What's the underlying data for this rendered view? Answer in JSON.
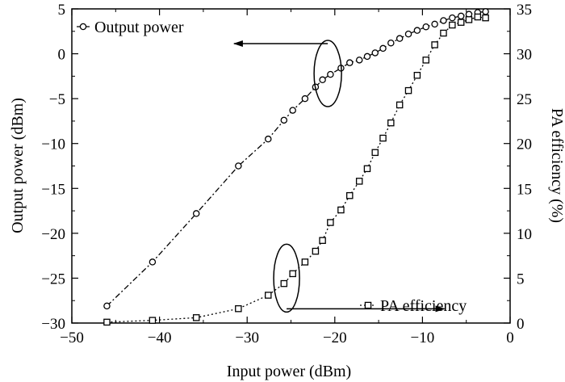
{
  "chart_data": {
    "type": "line",
    "xlabel": "Input power (dBm)",
    "ylabel_left": "Output power (dBm)",
    "ylabel_right": "PA efficiency (%)",
    "xlim": [
      -50,
      0
    ],
    "ylim_left": [
      -30,
      5
    ],
    "ylim_right": [
      0,
      35
    ],
    "x_ticks": [
      -50,
      -40,
      -30,
      -20,
      -10,
      0
    ],
    "x_tick_labels": [
      "−50",
      "−40",
      "−30",
      "−20",
      "−10",
      "0"
    ],
    "y_left_ticks": [
      5,
      0,
      -5,
      -10,
      -15,
      -20,
      -25,
      -30
    ],
    "y_left_tick_labels": [
      "5",
      "0",
      "−5",
      "−10",
      "−15",
      "−20",
      "−25",
      "−30"
    ],
    "y_right_ticks": [
      35,
      30,
      25,
      20,
      15,
      10,
      5,
      0
    ],
    "y_right_tick_labels": [
      "35",
      "30",
      "25",
      "20",
      "15",
      "10",
      "5",
      "0"
    ],
    "grid": false,
    "series": [
      {
        "name": "Output power",
        "axis": "left",
        "marker": "circle",
        "linestyle": "dash-dot",
        "x": [
          -46,
          -40.8,
          -35.8,
          -31,
          -27.6,
          -25.8,
          -24.8,
          -23.4,
          -22.2,
          -21.4,
          -20.5,
          -19.3,
          -18.3,
          -17.2,
          -16.3,
          -15.4,
          -14.5,
          -13.6,
          -12.6,
          -11.6,
          -10.6,
          -9.6,
          -8.6,
          -7.6,
          -6.6,
          -5.6,
          -4.7,
          -3.7,
          -2.8
        ],
        "y": [
          -28.1,
          -23.2,
          -17.8,
          -12.5,
          -9.5,
          -7.4,
          -6.3,
          -5.0,
          -3.7,
          -2.9,
          -2.3,
          -1.6,
          -1.0,
          -0.7,
          -0.3,
          0.1,
          0.6,
          1.2,
          1.7,
          2.2,
          2.6,
          3.0,
          3.3,
          3.7,
          4.0,
          4.2,
          4.4,
          4.6,
          4.7
        ]
      },
      {
        "name": "PA efficiency",
        "axis": "right",
        "marker": "square",
        "linestyle": "dotted",
        "x": [
          -46,
          -40.8,
          -35.8,
          -31,
          -27.6,
          -25.8,
          -24.8,
          -23.4,
          -22.2,
          -21.4,
          -20.5,
          -19.3,
          -18.3,
          -17.2,
          -16.3,
          -15.4,
          -14.5,
          -13.6,
          -12.6,
          -11.6,
          -10.6,
          -9.6,
          -8.6,
          -7.6,
          -6.6,
          -5.6,
          -4.7,
          -3.7,
          -2.8
        ],
        "y": [
          0.1,
          0.3,
          0.6,
          1.6,
          3.1,
          4.4,
          5.5,
          6.8,
          8.0,
          9.2,
          11.2,
          12.6,
          14.2,
          15.8,
          17.2,
          19.0,
          20.6,
          22.3,
          24.3,
          25.9,
          27.6,
          29.3,
          31.0,
          32.3,
          33.2,
          33.5,
          33.8,
          34.1,
          34.0
        ]
      }
    ],
    "annotations": [
      {
        "kind": "ellipse-arrow",
        "series": "Output power",
        "points_to": "left-axis",
        "center": [
          -20.8,
          -2.2
        ]
      },
      {
        "kind": "ellipse-arrow",
        "series": "PA efficiency",
        "points_to": "right-axis",
        "center": [
          -25.5,
          -25.0
        ]
      }
    ]
  }
}
